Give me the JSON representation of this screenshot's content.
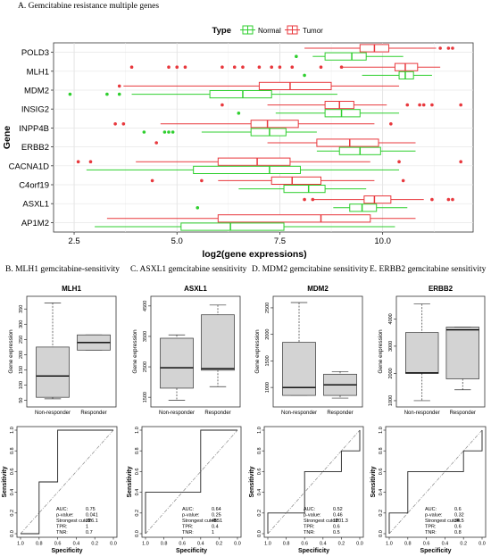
{
  "figure": {
    "title": "A. Gemcitabine resistance multiple genes",
    "panel_captions": [
      "B. MLH1 gemcitabine-sensitivity",
      "C. ASXL1 gemcitabine sensitivity",
      "D. MDM2 gemcitabine sensitivity",
      "E. ERBB2 gemcitabine sensitivity"
    ]
  },
  "colors": {
    "normal": "#2fcf2f",
    "tumor": "#e8383d",
    "box_fill": "#d3d3d3"
  },
  "chart_data": [
    {
      "type": "box",
      "orientation": "horizontal",
      "legend_title": "Type",
      "legend": [
        "Normal",
        "Tumor"
      ],
      "legend_position": "top",
      "xlabel": "log2(gene expressions)",
      "ylabel": "Gene",
      "xlim": [
        2.0,
        12.2
      ],
      "xticks": [
        2.5,
        5.0,
        7.5,
        10.0
      ],
      "xtick_labels": [
        "2.5",
        "5.0",
        "7.5",
        "10.0"
      ],
      "grid": true,
      "genes": [
        {
          "name": "POLD3",
          "normal": {
            "min": 8.3,
            "q1": 8.6,
            "median": 9.25,
            "q3": 9.6,
            "max": 10.5,
            "outliers": [
              7.9
            ]
          },
          "tumor": {
            "min": 8.1,
            "q1": 9.45,
            "median": 9.8,
            "q3": 10.15,
            "max": 11.3,
            "outliers": [
              11.4,
              11.6,
              11.7
            ]
          }
        },
        {
          "name": "MLH1",
          "normal": {
            "min": 9.5,
            "q1": 10.4,
            "median": 10.55,
            "q3": 10.75,
            "max": 11.2,
            "outliers": [
              8.1
            ]
          },
          "tumor": {
            "min": 9.0,
            "q1": 10.3,
            "median": 10.55,
            "q3": 10.85,
            "max": 11.4,
            "outliers": [
              3.9,
              4.8,
              5.0,
              5.2,
              6.1,
              6.4,
              6.6,
              7.0,
              7.3,
              7.5,
              7.8,
              8.5,
              9.0
            ]
          }
        },
        {
          "name": "MDM2",
          "normal": {
            "min": 3.9,
            "q1": 5.8,
            "median": 6.6,
            "q3": 7.3,
            "max": 8.9,
            "outliers": [
              2.4,
              3.3,
              3.6
            ]
          },
          "tumor": {
            "min": 3.7,
            "q1": 7.0,
            "median": 7.75,
            "q3": 8.75,
            "max": 10.4,
            "outliers": [
              3.6
            ]
          }
        },
        {
          "name": "INSIG2",
          "normal": {
            "min": 7.4,
            "q1": 8.6,
            "median": 9.0,
            "q3": 9.45,
            "max": 10.4,
            "outliers": [
              6.5
            ]
          },
          "tumor": {
            "min": 7.2,
            "q1": 8.6,
            "median": 8.95,
            "q3": 9.3,
            "max": 10.1,
            "outliers": [
              6.1,
              10.6,
              10.9,
              11.0,
              11.2,
              11.9
            ]
          }
        },
        {
          "name": "INPP4B",
          "normal": {
            "min": 5.6,
            "q1": 6.8,
            "median": 7.25,
            "q3": 7.65,
            "max": 8.4,
            "outliers": [
              4.2,
              4.7,
              4.8,
              4.9
            ]
          },
          "tumor": {
            "min": 4.6,
            "q1": 6.8,
            "median": 7.2,
            "q3": 7.95,
            "max": 9.8,
            "outliers": [
              3.5,
              3.7,
              10.2
            ]
          }
        },
        {
          "name": "ERBB2",
          "normal": {
            "min": 8.4,
            "q1": 8.95,
            "median": 9.45,
            "q3": 9.95,
            "max": 10.8,
            "outliers": []
          },
          "tumor": {
            "min": 7.2,
            "q1": 8.4,
            "median": 9.2,
            "q3": 9.9,
            "max": 10.8,
            "outliers": [
              4.5
            ]
          }
        },
        {
          "name": "CACNA1D",
          "normal": {
            "min": 2.8,
            "q1": 5.4,
            "median": 7.25,
            "q3": 8.0,
            "max": 10.4,
            "outliers": []
          },
          "tumor": {
            "min": 4.0,
            "q1": 6.0,
            "median": 6.95,
            "q3": 7.75,
            "max": 9.7,
            "outliers": [
              2.6,
              2.9,
              10.4,
              11.9
            ]
          }
        },
        {
          "name": "C4orf19",
          "normal": {
            "min": 6.5,
            "q1": 7.6,
            "median": 8.2,
            "q3": 8.6,
            "max": 9.6,
            "outliers": []
          },
          "tumor": {
            "min": 6.0,
            "q1": 7.3,
            "median": 7.8,
            "q3": 8.5,
            "max": 9.8,
            "outliers": [
              4.4,
              5.6,
              10.5
            ]
          }
        },
        {
          "name": "ASXL1",
          "normal": {
            "min": 8.8,
            "q1": 9.2,
            "median": 9.5,
            "q3": 9.85,
            "max": 10.6,
            "outliers": [
              5.5
            ]
          },
          "tumor": {
            "min": 8.3,
            "q1": 9.55,
            "median": 9.8,
            "q3": 10.2,
            "max": 11.0,
            "outliers": [
              8.1,
              8.3,
              11.2,
              11.6,
              11.7
            ]
          }
        },
        {
          "name": "AP1M2",
          "normal": {
            "min": 3.0,
            "q1": 5.1,
            "median": 6.3,
            "q3": 7.6,
            "max": 10.3,
            "outliers": []
          },
          "tumor": {
            "min": 3.3,
            "q1": 6.0,
            "median": 8.5,
            "q3": 9.7,
            "max": 10.8,
            "outliers": []
          }
        }
      ]
    },
    {
      "type": "box",
      "panel": "B",
      "title": "MLH1",
      "ylabel": "Gene expression",
      "categories": [
        "Non-responder",
        "Responder"
      ],
      "ylim": [
        40,
        380
      ],
      "yticks": [
        50,
        100,
        150,
        200,
        250,
        300,
        350
      ],
      "boxes": [
        {
          "min": 55,
          "q1": 60,
          "median": 130,
          "q3": 225,
          "max": 370
        },
        {
          "min": 215,
          "q1": 215,
          "median": 240,
          "q3": 265,
          "max": 265
        }
      ]
    },
    {
      "type": "box",
      "panel": "C",
      "title": "ASXL1",
      "ylabel": "Gene expression",
      "categories": [
        "Non-responder",
        "Responder"
      ],
      "ylim": [
        1300,
        4700
      ],
      "yticks": [
        1500,
        2500,
        3500,
        4500
      ],
      "boxes": [
        {
          "min": 1400,
          "q1": 1800,
          "median": 2470,
          "q3": 3440,
          "max": 3550
        },
        {
          "min": 1850,
          "q1": 2390,
          "median": 2440,
          "q3": 4210,
          "max": 4530
        }
      ]
    },
    {
      "type": "box",
      "panel": "D",
      "title": "MDM2",
      "ylabel": "Gene expression",
      "categories": [
        "Non-responder",
        "Responder"
      ],
      "ylim": [
        700,
        2650
      ],
      "yticks": [
        1000,
        1500,
        2000,
        2500
      ],
      "boxes": [
        {
          "min": 850,
          "q1": 850,
          "median": 1000,
          "q3": 1850,
          "max": 2600
        },
        {
          "min": 800,
          "q1": 850,
          "median": 1050,
          "q3": 1250,
          "max": 1300
        }
      ]
    },
    {
      "type": "box",
      "panel": "E",
      "title": "ERBB2",
      "ylabel": "Gene expression",
      "categories": [
        "Non-responder",
        "Responder"
      ],
      "ylim": [
        900,
        4700
      ],
      "yticks": [
        1000,
        2000,
        3000,
        4000
      ],
      "boxes": [
        {
          "min": 1000,
          "q1": 2000,
          "median": 2020,
          "q3": 3500,
          "max": 4550
        },
        {
          "min": 1400,
          "q1": 1800,
          "median": 3600,
          "q3": 3700,
          "max": 3700
        }
      ]
    },
    {
      "type": "roc",
      "panel": "B",
      "xlabel": "Specificity",
      "ylabel": "Sensitivity",
      "xticks": [
        1.0,
        0.8,
        0.6,
        0.4,
        0.2,
        0.0
      ],
      "yticks": [
        0.0,
        0.2,
        0.4,
        0.6,
        0.8,
        1.0
      ],
      "curve": [
        [
          1.0,
          0.0
        ],
        [
          0.8,
          0.0
        ],
        [
          0.8,
          0.5
        ],
        [
          0.6,
          0.5
        ],
        [
          0.6,
          1.0
        ],
        [
          0.0,
          1.0
        ]
      ],
      "stats": [
        {
          "label": "AUC:",
          "value": "0.75"
        },
        {
          "label": "p-value:",
          "value": "0.041"
        },
        {
          "label": "Strongest cutoff:",
          "value": "226.1"
        },
        {
          "label": "TPR:",
          "value": "1"
        },
        {
          "label": "TNR:",
          "value": "0.7"
        }
      ]
    },
    {
      "type": "roc",
      "panel": "C",
      "xlabel": "Specificity",
      "ylabel": "Sensitivity",
      "xticks": [
        1.0,
        0.8,
        0.6,
        0.4,
        0.2,
        0.0
      ],
      "yticks": [
        0.0,
        0.2,
        0.4,
        0.6,
        0.8,
        1.0
      ],
      "curve": [
        [
          1.0,
          0.0
        ],
        [
          1.0,
          0.4
        ],
        [
          0.4,
          0.4
        ],
        [
          0.4,
          1.0
        ],
        [
          0.0,
          1.0
        ]
      ],
      "stats": [
        {
          "label": "AUC:",
          "value": "0.64"
        },
        {
          "label": "p-value:",
          "value": "0.25"
        },
        {
          "label": "Strongest cutoff:",
          "value": "4551"
        },
        {
          "label": "TPR:",
          "value": "0.4"
        },
        {
          "label": "TNR:",
          "value": "1"
        }
      ]
    },
    {
      "type": "roc",
      "panel": "D",
      "xlabel": "Specificity",
      "ylabel": "Sensitivity",
      "xticks": [
        1.0,
        0.8,
        0.6,
        0.4,
        0.2,
        0.0
      ],
      "yticks": [
        0.0,
        0.2,
        0.4,
        0.6,
        0.8,
        1.0
      ],
      "curve": [
        [
          1.0,
          0.0
        ],
        [
          1.0,
          0.2
        ],
        [
          0.6,
          0.2
        ],
        [
          0.6,
          0.6
        ],
        [
          0.2,
          0.6
        ],
        [
          0.2,
          0.8
        ],
        [
          0.0,
          0.8
        ],
        [
          0.0,
          1.0
        ]
      ],
      "stats": [
        {
          "label": "AUC:",
          "value": "0.52"
        },
        {
          "label": "p-value:",
          "value": "0.46"
        },
        {
          "label": "Strongest cutoff:",
          "value": "1201.3"
        },
        {
          "label": "TPR:",
          "value": "0.6"
        },
        {
          "label": "TNR:",
          "value": "0.5"
        }
      ]
    },
    {
      "type": "roc",
      "panel": "E",
      "xlabel": "Specificity",
      "ylabel": "Sensitivity",
      "xticks": [
        1.0,
        0.8,
        0.6,
        0.4,
        0.2,
        0.0
      ],
      "yticks": [
        0.0,
        0.2,
        0.4,
        0.6,
        0.8,
        1.0
      ],
      "curve": [
        [
          1.0,
          0.0
        ],
        [
          1.0,
          0.2
        ],
        [
          0.8,
          0.2
        ],
        [
          0.8,
          0.6
        ],
        [
          0.2,
          0.6
        ],
        [
          0.2,
          0.8
        ],
        [
          0.0,
          0.8
        ],
        [
          0.0,
          1.0
        ]
      ],
      "stats": [
        {
          "label": "AUC:",
          "value": "0.6"
        },
        {
          "label": "p-value:",
          "value": "0.32"
        },
        {
          "label": "Strongest cutoff:",
          "value": "34.5"
        },
        {
          "label": "TPR:",
          "value": "0.6"
        },
        {
          "label": "TNR:",
          "value": "0.8"
        }
      ]
    }
  ]
}
